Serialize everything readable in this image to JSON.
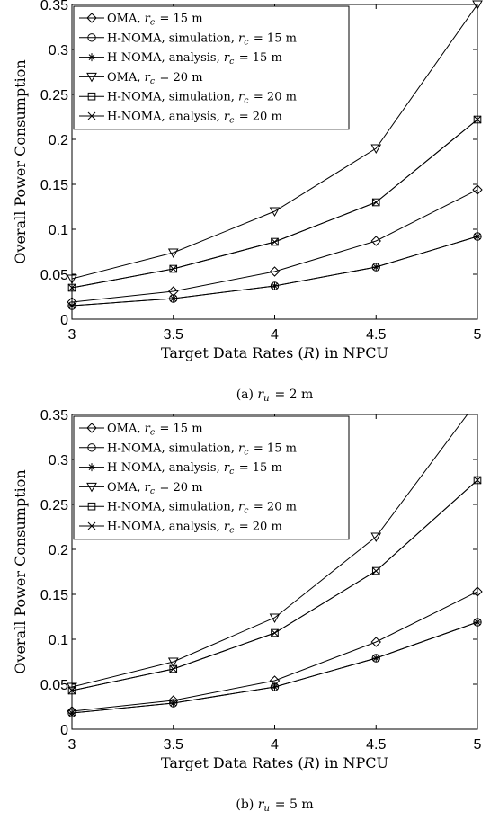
{
  "chart_data": [
    {
      "type": "line",
      "caption": "(a) r_u = 2 m",
      "xlabel": "Target Data Rates (R) in NPCU",
      "ylabel": "Overall Power Consumption",
      "x": [
        3,
        3.5,
        4,
        4.5,
        5
      ],
      "xlim": [
        3,
        5
      ],
      "ylim": [
        0,
        0.35
      ],
      "xticks": [
        "3",
        "3.5",
        "4",
        "4.5",
        "5"
      ],
      "yticks": [
        "0",
        "0.05",
        "0.1",
        "0.15",
        "0.2",
        "0.25",
        "0.3",
        "0.35"
      ],
      "grid": false,
      "legend_position": "top-left",
      "series": [
        {
          "name": "OMA, r_c = 15 m",
          "marker": "diamond",
          "values": [
            0.019,
            0.031,
            0.053,
            0.087,
            0.144
          ]
        },
        {
          "name": "H-NOMA, simulation, r_c = 15 m",
          "marker": "circle",
          "values": [
            0.015,
            0.023,
            0.037,
            0.058,
            0.092
          ]
        },
        {
          "name": "H-NOMA, analysis, r_c = 15 m",
          "marker": "asterisk",
          "values": [
            0.015,
            0.023,
            0.037,
            0.058,
            0.092
          ]
        },
        {
          "name": "OMA, r_c = 20 m",
          "marker": "triangle-down",
          "values": [
            0.045,
            0.074,
            0.12,
            0.19,
            0.35
          ]
        },
        {
          "name": "H-NOMA, simulation, r_c = 20 m",
          "marker": "square",
          "values": [
            0.035,
            0.056,
            0.086,
            0.13,
            0.222
          ]
        },
        {
          "name": "H-NOMA, analysis, r_c = 20 m",
          "marker": "cross",
          "values": [
            0.035,
            0.056,
            0.086,
            0.13,
            0.222
          ]
        }
      ]
    },
    {
      "type": "line",
      "caption": "(b) r_u = 5 m",
      "xlabel": "Target Data Rates (R) in NPCU",
      "ylabel": "Overall Power Consumption",
      "x": [
        3,
        3.5,
        4,
        4.5,
        5
      ],
      "xlim": [
        3,
        5
      ],
      "ylim": [
        0,
        0.35
      ],
      "xticks": [
        "3",
        "3.5",
        "4",
        "4.5",
        "5"
      ],
      "yticks": [
        "0",
        "0.05",
        "0.1",
        "0.15",
        "0.2",
        "0.25",
        "0.3",
        "0.35"
      ],
      "grid": false,
      "legend_position": "top-left",
      "series": [
        {
          "name": "OMA, r_c = 15 m",
          "marker": "diamond",
          "values": [
            0.02,
            0.032,
            0.054,
            0.097,
            0.153
          ]
        },
        {
          "name": "H-NOMA, simulation, r_c = 15 m",
          "marker": "circle",
          "values": [
            0.018,
            0.029,
            0.047,
            0.079,
            0.119
          ]
        },
        {
          "name": "H-NOMA, analysis, r_c = 15 m",
          "marker": "asterisk",
          "values": [
            0.018,
            0.029,
            0.047,
            0.079,
            0.119
          ]
        },
        {
          "name": "OMA, r_c = 20 m",
          "marker": "triangle-down",
          "values": [
            0.047,
            0.075,
            0.124,
            0.214,
            0.365
          ]
        },
        {
          "name": "H-NOMA, simulation, r_c = 20 m",
          "marker": "square",
          "values": [
            0.043,
            0.067,
            0.107,
            0.176,
            0.277
          ]
        },
        {
          "name": "H-NOMA, analysis, r_c = 20 m",
          "marker": "cross",
          "values": [
            0.043,
            0.067,
            0.107,
            0.176,
            0.277
          ]
        }
      ]
    }
  ]
}
